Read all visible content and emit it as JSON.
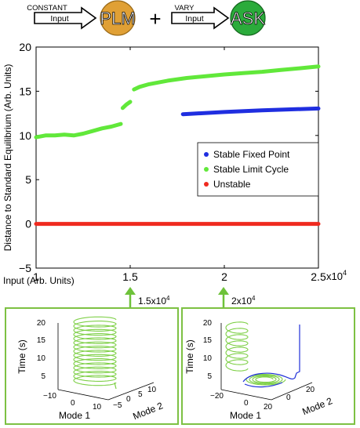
{
  "header": {
    "constant_label": "CONSTANT",
    "vary_label": "VARY",
    "input_label": "Input",
    "plm_label": "PLM",
    "ask_label": "ASK",
    "plus": "+",
    "colors": {
      "plm": "#e0a035",
      "ask": "#2bab3b"
    }
  },
  "chart_data": {
    "type": "scatter",
    "ylabel": "Distance to Standard Equilibrium (Arb. Units)",
    "xlabel": "Input (Arb. Units)",
    "x_multiplier_label": "x10",
    "x_multiplier_exp": "4",
    "xlim": [
      1,
      2.5
    ],
    "ylim": [
      -5,
      20
    ],
    "x_ticks": [
      1,
      1.5,
      2,
      2.5
    ],
    "x_tick_labels": [
      "1",
      "1.5",
      "2",
      "2.5"
    ],
    "y_ticks": [
      -5,
      0,
      5,
      10,
      15,
      20
    ],
    "y_tick_labels": [
      "−5",
      "0",
      "5",
      "10",
      "15",
      "20"
    ],
    "legend_position": "right",
    "series": [
      {
        "name": "Stable Fixed Point",
        "color": "#1f2ee0",
        "points": [
          [
            1.78,
            12.4
          ],
          [
            2.0,
            12.65
          ],
          [
            2.2,
            12.85
          ],
          [
            2.5,
            13.05
          ]
        ]
      },
      {
        "name": "Stable Limit Cycle",
        "color": "#61e83a",
        "segments": [
          [
            [
              1.0,
              9.8
            ],
            [
              1.05,
              10.0
            ],
            [
              1.1,
              10.0
            ],
            [
              1.15,
              10.1
            ],
            [
              1.2,
              10.0
            ],
            [
              1.25,
              10.2
            ],
            [
              1.3,
              10.5
            ],
            [
              1.35,
              10.8
            ],
            [
              1.4,
              11.0
            ],
            [
              1.45,
              11.3
            ]
          ],
          [
            [
              1.46,
              13.1
            ],
            [
              1.48,
              13.5
            ],
            [
              1.5,
              13.8
            ]
          ],
          [
            [
              1.52,
              15.2
            ],
            [
              1.55,
              15.5
            ],
            [
              1.6,
              15.8
            ],
            [
              1.7,
              16.2
            ],
            [
              1.8,
              16.5
            ],
            [
              1.9,
              16.7
            ],
            [
              2.0,
              16.9
            ],
            [
              2.1,
              17.05
            ],
            [
              2.2,
              17.2
            ],
            [
              2.3,
              17.4
            ],
            [
              2.4,
              17.6
            ],
            [
              2.5,
              17.8
            ]
          ]
        ]
      },
      {
        "name": "Unstable",
        "color": "#ef2a1f",
        "points": [
          [
            1.0,
            0
          ],
          [
            2.5,
            0
          ]
        ]
      }
    ]
  },
  "insets": [
    {
      "value_label": "1.5x10",
      "value_exp": "4",
      "zlabel": "Time (s)",
      "xlabel": "Mode 1",
      "ylabel": "Mode 2",
      "z_ticks": [
        "5",
        "10",
        "15",
        "20"
      ],
      "x_ticks": [
        "−10",
        "0",
        "10"
      ],
      "y_ticks": [
        "−5",
        "0",
        "5",
        "10"
      ]
    },
    {
      "value_label": "2x10",
      "value_exp": "4",
      "zlabel": "Time (s)",
      "xlabel": "Mode 1",
      "ylabel": "Mode 2",
      "z_ticks": [
        "5",
        "10",
        "15",
        "20"
      ],
      "x_ticks": [
        "−20",
        "0",
        "20"
      ],
      "y_ticks": [
        "0",
        "20"
      ]
    }
  ],
  "colors": {
    "arrow": "#6ec23a",
    "frame": "#7dc143"
  }
}
